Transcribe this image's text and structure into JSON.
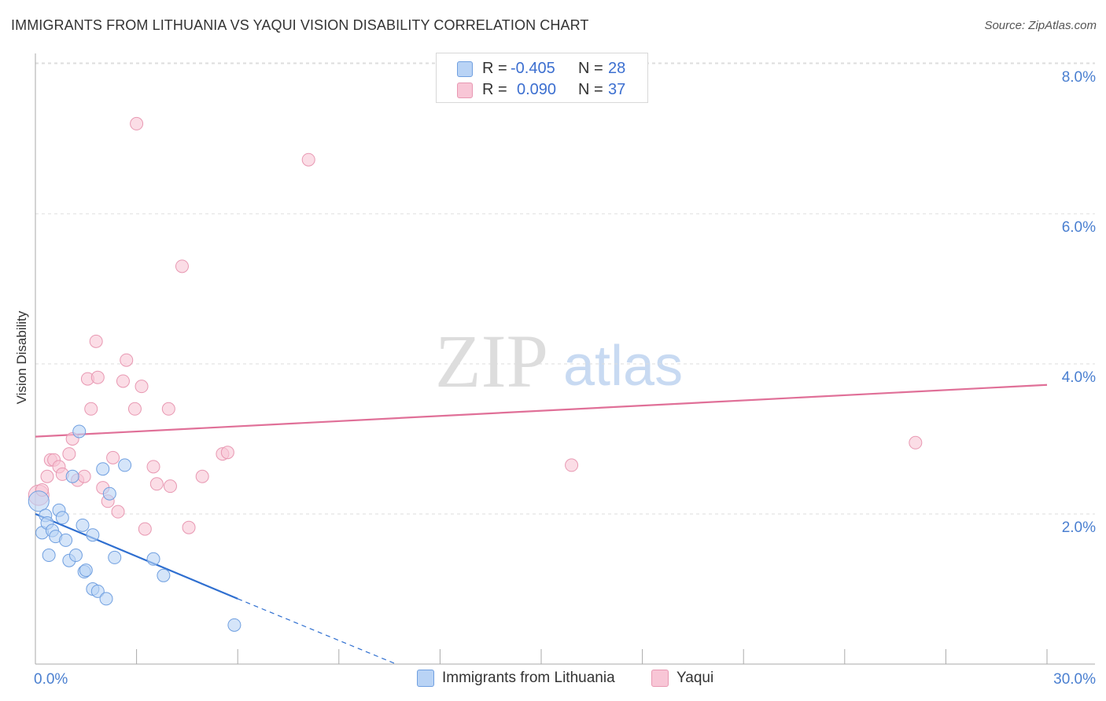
{
  "title": "IMMIGRANTS FROM LITHUANIA VS YAQUI VISION DISABILITY CORRELATION CHART",
  "source": "Source: ZipAtlas.com",
  "watermark": {
    "zip": "ZIP",
    "atlas": "atlas"
  },
  "colors": {
    "blue_fill": "#b9d3f5",
    "blue_stroke": "#6f9fe0",
    "blue_line": "#2f6fd0",
    "pink_fill": "#f8c6d6",
    "pink_stroke": "#e898b2",
    "pink_line": "#e07098",
    "tick_text": "#4a7fd0",
    "grid": "#dddddd"
  },
  "legend": {
    "rows": [
      {
        "r_label": "R =",
        "r_value": "-0.405",
        "n_label": "N =",
        "n_value": "28",
        "color": "#b9d3f5",
        "border": "#6f9fe0"
      },
      {
        "r_label": "R =",
        "r_value": "0.090",
        "n_label": "N =",
        "n_value": "37",
        "color": "#f8c6d6",
        "border": "#e898b2"
      }
    ]
  },
  "bottom_legend": [
    {
      "label": "Immigrants from Lithuania",
      "color": "#b9d3f5",
      "border": "#6f9fe0"
    },
    {
      "label": "Yaqui",
      "color": "#f8c6d6",
      "border": "#e898b2"
    }
  ],
  "chart_data": {
    "type": "scatter",
    "title": "IMMIGRANTS FROM LITHUANIA VS YAQUI VISION DISABILITY CORRELATION CHART",
    "xlabel": "",
    "ylabel": "Vision Disability",
    "xlim": [
      0,
      30
    ],
    "ylim": [
      0,
      8.4
    ],
    "x_ticks": [
      0,
      3,
      6,
      9,
      12,
      15,
      18,
      21,
      24,
      27,
      30
    ],
    "x_tick_labels": [
      {
        "value": 0,
        "label": "0.0%"
      },
      {
        "value": 30,
        "label": "30.0%"
      }
    ],
    "y_ticks": [
      {
        "value": 2,
        "label": "2.0%"
      },
      {
        "value": 4,
        "label": "4.0%"
      },
      {
        "value": 6,
        "label": "6.0%"
      },
      {
        "value": 8,
        "label": "8.0%"
      }
    ],
    "series": [
      {
        "name": "Immigrants from Lithuania",
        "points": [
          [
            0.1,
            2.17
          ],
          [
            0.2,
            1.75
          ],
          [
            0.3,
            1.98
          ],
          [
            0.35,
            1.88
          ],
          [
            0.4,
            1.45
          ],
          [
            0.5,
            1.78
          ],
          [
            0.6,
            1.7
          ],
          [
            0.7,
            2.05
          ],
          [
            0.8,
            1.95
          ],
          [
            0.9,
            1.65
          ],
          [
            1.0,
            1.38
          ],
          [
            1.1,
            2.5
          ],
          [
            1.2,
            1.45
          ],
          [
            1.3,
            3.1
          ],
          [
            1.4,
            1.85
          ],
          [
            1.45,
            1.23
          ],
          [
            1.5,
            1.25
          ],
          [
            1.7,
            1.72
          ],
          [
            1.7,
            1.0
          ],
          [
            1.85,
            0.97
          ],
          [
            2.0,
            2.6
          ],
          [
            2.1,
            0.87
          ],
          [
            2.2,
            2.27
          ],
          [
            2.35,
            1.42
          ],
          [
            2.65,
            2.65
          ],
          [
            3.5,
            1.4
          ],
          [
            3.8,
            1.18
          ],
          [
            5.9,
            0.52
          ]
        ],
        "trend": {
          "x0": 0,
          "y0": 2.0,
          "x1": 6.0,
          "y1": 0.87,
          "dash_to_x": 10.7,
          "dash_to_y": 0.0
        }
      },
      {
        "name": "Yaqui",
        "points": [
          [
            0.1,
            2.25
          ],
          [
            0.2,
            2.32
          ],
          [
            0.35,
            2.5
          ],
          [
            0.45,
            2.72
          ],
          [
            0.55,
            2.72
          ],
          [
            0.7,
            2.63
          ],
          [
            0.8,
            2.53
          ],
          [
            1.0,
            2.8
          ],
          [
            1.1,
            3.0
          ],
          [
            1.25,
            2.45
          ],
          [
            1.45,
            2.5
          ],
          [
            1.55,
            3.8
          ],
          [
            1.65,
            3.4
          ],
          [
            1.8,
            4.3
          ],
          [
            1.85,
            3.82
          ],
          [
            2.0,
            2.35
          ],
          [
            2.15,
            2.17
          ],
          [
            2.3,
            2.75
          ],
          [
            2.45,
            2.03
          ],
          [
            2.6,
            3.77
          ],
          [
            2.7,
            4.05
          ],
          [
            2.95,
            3.4
          ],
          [
            3.0,
            7.2
          ],
          [
            3.15,
            3.7
          ],
          [
            3.25,
            1.8
          ],
          [
            3.5,
            2.63
          ],
          [
            3.6,
            2.4
          ],
          [
            3.95,
            3.4
          ],
          [
            4.0,
            2.37
          ],
          [
            4.35,
            5.3
          ],
          [
            4.55,
            1.82
          ],
          [
            4.95,
            2.5
          ],
          [
            5.55,
            2.8
          ],
          [
            5.7,
            2.82
          ],
          [
            8.1,
            6.72
          ],
          [
            15.9,
            2.65
          ],
          [
            26.1,
            2.95
          ]
        ],
        "trend": {
          "x0": 0,
          "y0": 3.03,
          "x1": 30,
          "y1": 3.72
        }
      }
    ]
  }
}
